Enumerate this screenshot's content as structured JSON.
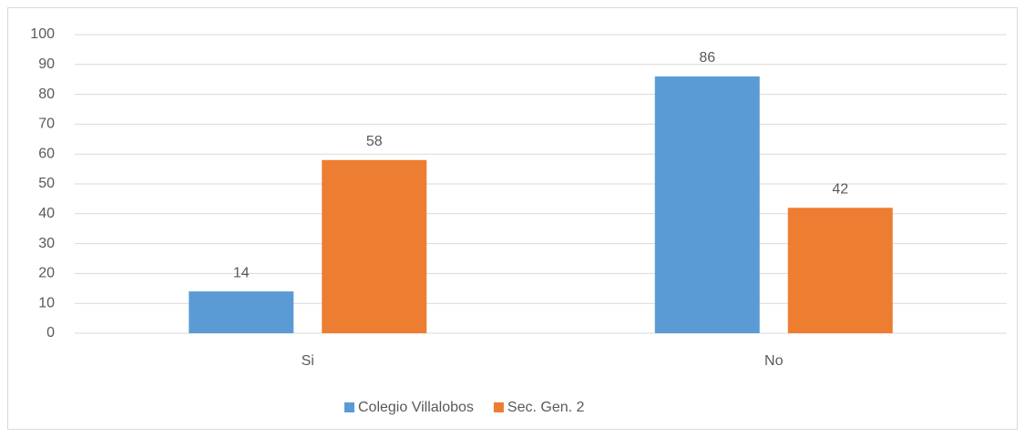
{
  "chart_data": {
    "type": "bar",
    "categories": [
      "Si",
      "No"
    ],
    "series": [
      {
        "name": "Colegio Villalobos",
        "color": "#5b9bd5",
        "values": [
          14,
          86
        ]
      },
      {
        "name": "Sec. Gen. 2",
        "color": "#ed7d31",
        "values": [
          58,
          42
        ]
      }
    ],
    "ylim": [
      0,
      100
    ],
    "yticks": [
      0,
      10,
      20,
      30,
      40,
      50,
      60,
      70,
      80,
      90,
      100
    ],
    "grid": true,
    "legend": "bottom",
    "data_labels": true
  }
}
